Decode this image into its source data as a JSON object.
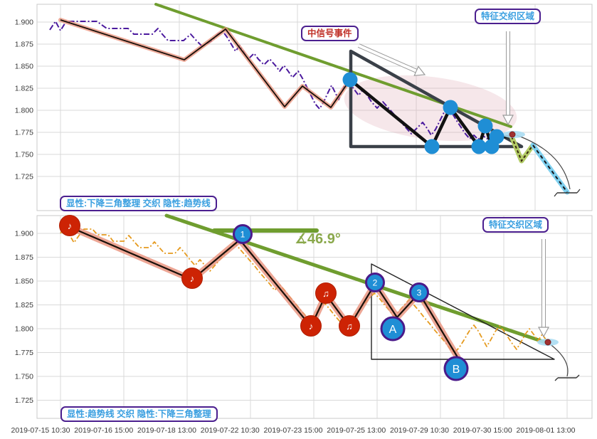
{
  "labels": {
    "signal_event": "中信号事件",
    "feature_zone_top": "特征交织区域",
    "feature_zone_bottom": "特征交织区域",
    "caption_top": "显性:下降三角整理 交织 隐性:趋势线",
    "caption_bottom": "显性:趋势线 交织 隐性:下降三角整理",
    "angle": "∡46.9°"
  },
  "axes": {
    "y_ticks": [
      "1.900",
      "1.875",
      "1.850",
      "1.825",
      "1.800",
      "1.775",
      "1.750",
      "1.725"
    ],
    "x_ticks": [
      "2019-07-15 10:30",
      "2019-07-16 15:00",
      "2019-07-18 13:00",
      "2019-07-22 10:30",
      "2019-07-23 15:00",
      "2019-07-25 13:00",
      "2019-07-29 10:30",
      "2019-07-30 15:00",
      "2019-08-01 13:00"
    ]
  },
  "colors": {
    "grid": "#d9d9d9",
    "border": "#c9c9c9",
    "tick_text": "#3a3a3a",
    "trend_green": "#6f9d2f",
    "zigzag_salmon": "#e8907a",
    "zigzag_core": "#19100a",
    "price_purple": "#4b1a9e",
    "price_orange": "#e59a1e",
    "triangle_dark": "#3a4048",
    "triangle_thin": "#222222",
    "pivot_blue": "#1f8ed5",
    "marker_ring_purple": "#4a1a8a",
    "note_red": "#cd2304",
    "halo_blue": "#7fd0ef",
    "halo_green": "#b3cc67",
    "end_red_dot": "#a03030",
    "end_blue_ellipse": "#aadcf2",
    "label_blue": "#3a9fe0",
    "label_red": "#c03028",
    "label_border_purple": "#4b1f8f",
    "angle_green": "#8aa84b"
  },
  "chart_data": [
    {
      "type": "line",
      "panel": "top",
      "caption": "显性:下降三角整理 交织 隐性:趋势线",
      "x_categories": [
        "2019-07-15 10:30",
        "2019-07-16 15:00",
        "2019-07-18 13:00",
        "2019-07-22 10:30",
        "2019-07-23 15:00",
        "2019-07-25 13:00",
        "2019-07-29 10:30",
        "2019-07-30 15:00",
        "2019-08-01 13:00"
      ],
      "ylim": [
        1.715,
        1.905
      ],
      "yticks": [
        1.9,
        1.875,
        1.85,
        1.825,
        1.8,
        1.775,
        1.75,
        1.725
      ],
      "grid": true,
      "series": [
        {
          "name": "zigzag-pattern",
          "style": "black-with-salmon-halo",
          "pivot_values": [
            1.902,
            1.857,
            1.892,
            1.804,
            1.827,
            1.803,
            1.835,
            1.759,
            1.803,
            1.759,
            1.782,
            1.759,
            1.77,
            1.77
          ],
          "pivot_x_index": [
            0.0,
            1.96,
            2.61,
            3.54,
            3.82,
            4.27,
            4.57,
            5.87,
            6.16,
            6.61,
            6.71,
            6.81,
            6.94,
            7.1
          ]
        },
        {
          "name": "price",
          "style": "purple-dash-dot",
          "follows": "zigzag-pattern"
        },
        {
          "name": "trendline",
          "style": "green-solid",
          "from_value": 1.92,
          "to_value": 1.781,
          "from_x_index": 1.5,
          "to_x_index": 7.1
        }
      ],
      "descending_triangle": {
        "apex_value": 1.867,
        "support_value": 1.759,
        "x_index_start": 4.58,
        "x_index_end": 7.3
      },
      "pivot_dot_values": [
        1.835,
        1.759,
        1.803,
        1.759,
        1.782,
        1.759,
        1.77
      ],
      "forecast": {
        "style": "dashed",
        "segment_values": [
          1.77,
          1.743,
          1.757,
          1.706
        ],
        "end_marker_value": 1.706
      },
      "annotations": [
        "中信号事件",
        "特征交织区域"
      ]
    },
    {
      "type": "line",
      "panel": "bottom",
      "caption": "显性:趋势线 交织 隐性:下降三角整理",
      "x_categories": [
        "2019-07-15 10:30",
        "2019-07-16 15:00",
        "2019-07-18 13:00",
        "2019-07-22 10:30",
        "2019-07-23 15:00",
        "2019-07-25 13:00",
        "2019-07-29 10:30",
        "2019-07-30 15:00",
        "2019-08-01 13:00"
      ],
      "ylim": [
        1.715,
        1.915
      ],
      "yticks": [
        1.9,
        1.875,
        1.85,
        1.825,
        1.8,
        1.775,
        1.75,
        1.725
      ],
      "grid": true,
      "series": [
        {
          "name": "zigzag-pattern",
          "style": "black-with-salmon-halo",
          "pivot_values": [
            1.907,
            1.852,
            1.893,
            1.802,
            1.836,
            1.802,
            1.847,
            1.815,
            1.837,
            1.77
          ],
          "pivot_x_index": [
            0.15,
            2.08,
            2.83,
            3.96,
            4.19,
            4.56,
            4.97,
            5.31,
            5.66,
            6.27
          ]
        },
        {
          "name": "price",
          "style": "orange-dash-dot",
          "follows": "zigzag-pattern"
        },
        {
          "name": "trendline",
          "style": "green-solid",
          "from_value": 1.919,
          "to_value": 1.786,
          "from_x_index": 1.67,
          "to_x_index": 7.65,
          "angle_deg": 46.9
        },
        {
          "name": "horizontal-level",
          "style": "green-solid",
          "value": 1.903,
          "from_x_index": 2.43,
          "to_x_index": 4.04
        }
      ],
      "descending_triangle": {
        "apex_value": 1.868,
        "support_value": 1.768,
        "x_index_start": 4.91,
        "x_index_end": 7.8
      },
      "wave_markers": [
        {
          "label": "1",
          "value": 1.893
        },
        {
          "label": "2",
          "value": 1.847
        },
        {
          "label": "3",
          "value": 1.837
        },
        {
          "label": "A",
          "value": 1.815
        },
        {
          "label": "B",
          "value": 1.77
        }
      ],
      "note_marker_values": [
        1.908,
        1.853,
        1.803,
        1.837,
        1.803
      ],
      "forecast": {
        "end_marker_value": 1.749
      },
      "annotations": [
        "∡46.9°",
        "特征交织区域"
      ]
    }
  ],
  "markers": {
    "top_blue_dots": 7,
    "bottom_wave_labels": [
      "1",
      "2",
      "3",
      "A",
      "B"
    ],
    "bottom_note_glyphs": [
      "♪",
      "♪",
      "♪",
      "♫",
      "♫"
    ]
  }
}
